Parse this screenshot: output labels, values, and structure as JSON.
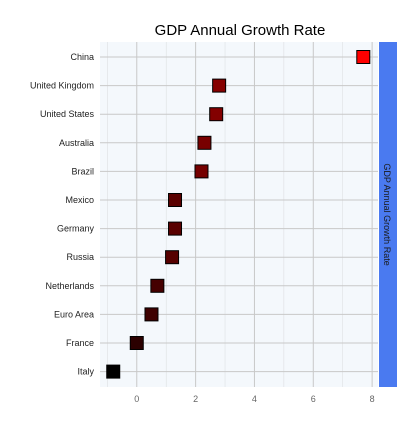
{
  "chart_data": {
    "type": "scatter",
    "title": "GDP Annual Growth Rate",
    "facet_label": "GDP Annual Growth Rate",
    "xlabel": "",
    "ylabel": "",
    "xlim": [
      -1.25,
      8.2
    ],
    "x_ticks": [
      0,
      2,
      4,
      6,
      8
    ],
    "grid": true,
    "legend": "none",
    "categories": [
      "China",
      "United Kingdom",
      "United States",
      "Australia",
      "Brazil",
      "Mexico",
      "Germany",
      "Russia",
      "Netherlands",
      "Euro Area",
      "France",
      "Italy"
    ],
    "values": [
      7.7,
      2.8,
      2.7,
      2.3,
      2.2,
      1.3,
      1.3,
      1.2,
      0.7,
      0.5,
      0.0,
      -0.8
    ],
    "color_scale": {
      "low": "#000000",
      "high": "#ff0000"
    },
    "colors": {
      "panel_bg": "#f4f8fc",
      "grid": "#c8c8c8",
      "strip_bg": "#4a7af0",
      "marker_edge": "#000000"
    }
  }
}
